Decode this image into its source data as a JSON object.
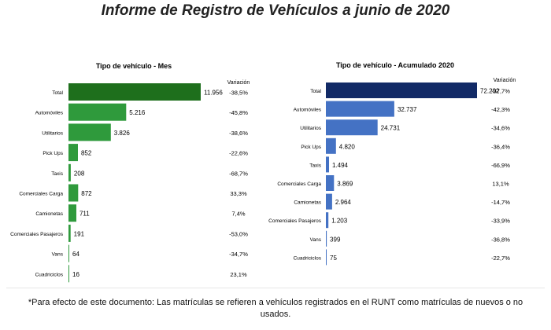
{
  "title": "Informe de Registro de Vehículos a junio de 2020",
  "footnote": "*Para efecto de este documento: Las matrículas se refieren a vehículos registrados en el RUNT como matrículas de nuevos o no usados.",
  "chart_data": [
    {
      "type": "bar",
      "orientation": "horizontal",
      "title": "Tipo de vehículo - Mes",
      "variation_header": "Variación",
      "colors": {
        "total": "#1e6f1c",
        "bars": "#2f9a3c"
      },
      "categories": [
        "Total",
        "Automóviles",
        "Utilitarios",
        "Pick Ups",
        "Taxis",
        "Comerciales Carga",
        "Camionetas",
        "Comerciales Pasajeros",
        "Vans",
        "Cuadriciclos"
      ],
      "values": [
        11956,
        5216,
        3826,
        852,
        208,
        872,
        711,
        191,
        64,
        16
      ],
      "value_labels": [
        "11.956",
        "5.216",
        "3.826",
        "852",
        "208",
        "872",
        "711",
        "191",
        "64",
        "16"
      ],
      "variation": [
        "-38,5%",
        "-45,8%",
        "-38,6%",
        "-22,6%",
        "-68,7%",
        "33,3%",
        "7,4%",
        "-53,0%",
        "-34,7%",
        "23,1%"
      ]
    },
    {
      "type": "bar",
      "orientation": "horizontal",
      "title": "Tipo de vehículo - Acumulado 2020",
      "variation_header": "Variación",
      "colors": {
        "total": "#122a66",
        "bars": "#4472c4"
      },
      "categories": [
        "Total",
        "Automóviles",
        "Utilitarios",
        "Pick Ups",
        "Taxis",
        "Comerciales Carga",
        "Camionetas",
        "Comerciales Pasajeros",
        "Vans",
        "Cuadriciclos"
      ],
      "values": [
        72292,
        32737,
        24731,
        4820,
        1494,
        3869,
        2964,
        1203,
        399,
        75
      ],
      "value_labels": [
        "72.292",
        "32.737",
        "24.731",
        "4.820",
        "1.494",
        "3.869",
        "2.964",
        "1.203",
        "399",
        "75"
      ],
      "variation": [
        "-37,7%",
        "-42,3%",
        "-34,6%",
        "-36,4%",
        "-66,9%",
        "13,1%",
        "-14,7%",
        "-33,9%",
        "-36,8%",
        "-22,7%"
      ]
    }
  ]
}
